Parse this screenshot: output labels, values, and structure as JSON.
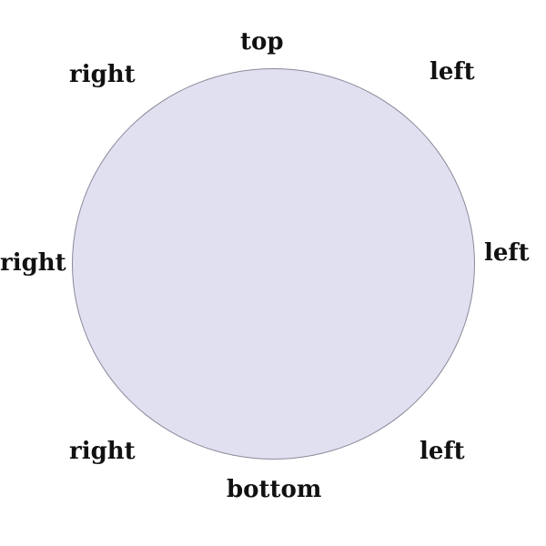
{
  "diagram": {
    "shape": "circle",
    "fill_color": "#e0e0f0",
    "stroke_color": "#8a8a9a",
    "labels": {
      "top": "top",
      "upper_left": "right",
      "upper_right": "left",
      "mid_left": "right",
      "mid_right": "left",
      "lower_left": "right",
      "lower_right": "left",
      "bottom": "bottom"
    }
  }
}
